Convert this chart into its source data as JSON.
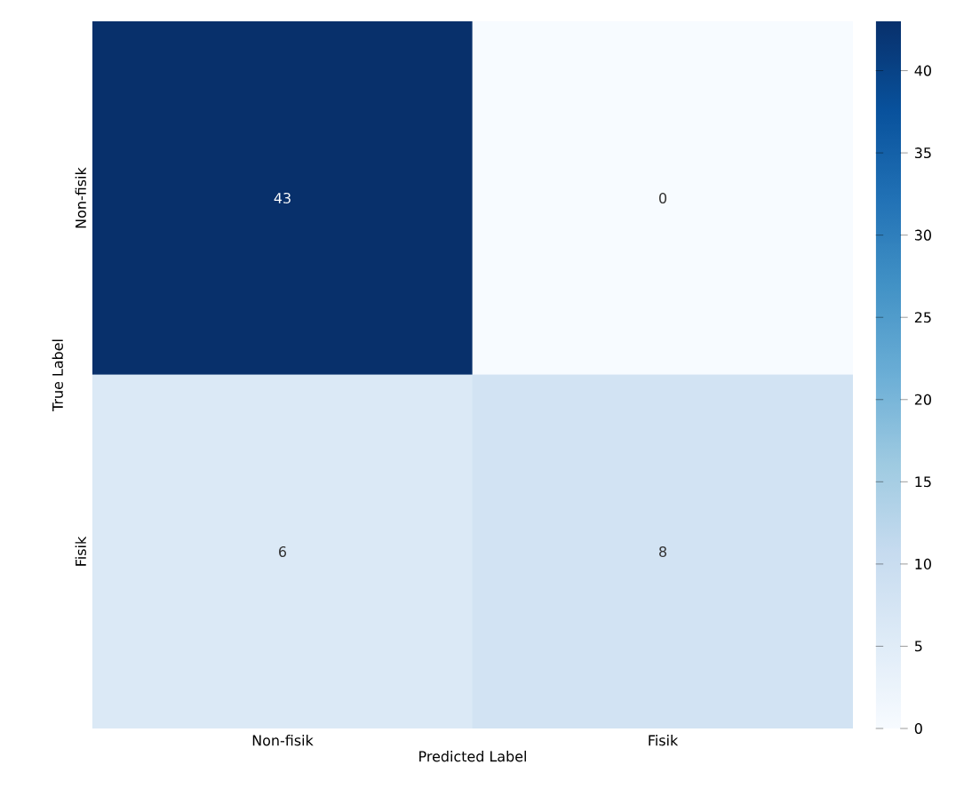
{
  "chart_data": {
    "type": "heatmap",
    "xlabel": "Predicted Label",
    "ylabel": "True Label",
    "categories": [
      "Non-fisik",
      "Fisik"
    ],
    "y_categories": [
      "Non-fisik",
      "Fisik"
    ],
    "cells": [
      [
        43,
        0
      ],
      [
        6,
        8
      ]
    ],
    "data_labels": true,
    "clim": [
      0,
      43
    ],
    "cticks": [
      0,
      5,
      10,
      15,
      20,
      25,
      30,
      35,
      40
    ]
  }
}
